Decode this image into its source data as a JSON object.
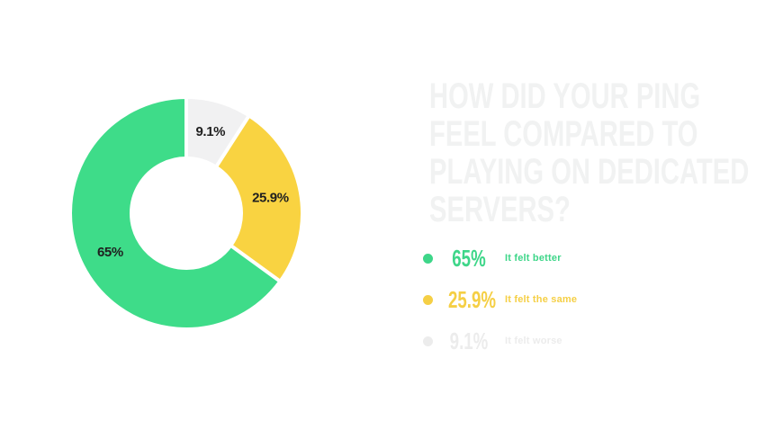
{
  "title": {
    "lines": [
      "HOW DID YOUR PING",
      "FEEL COMPARED TO",
      "PLAYING ON DEDICATED",
      "SERVERS?"
    ],
    "color": "#f1f2f2"
  },
  "chart_data": {
    "type": "pie",
    "variant": "donut",
    "title": "How did your ping feel compared to playing on dedicated servers?",
    "start_angle_deg": 0,
    "direction": "clockwise",
    "label_color": "#1f1f1f",
    "slices": [
      {
        "label": "It felt worse",
        "value": 9.1,
        "display": "9.1%",
        "color": "#f1f1f2"
      },
      {
        "label": "It felt the same",
        "value": 25.9,
        "display": "25.9%",
        "color": "#f9d341"
      },
      {
        "label": "It felt better",
        "value": 65,
        "display": "65%",
        "color": "#3edc89"
      }
    ]
  },
  "legend": {
    "items": [
      {
        "pct": "65%",
        "label": "It felt better",
        "color": "#3ed689"
      },
      {
        "pct": "25.9%",
        "label": "It felt the same",
        "color": "#f5cf45"
      },
      {
        "pct": "9.1%",
        "label": "It felt worse",
        "color": "#ececec"
      }
    ]
  }
}
